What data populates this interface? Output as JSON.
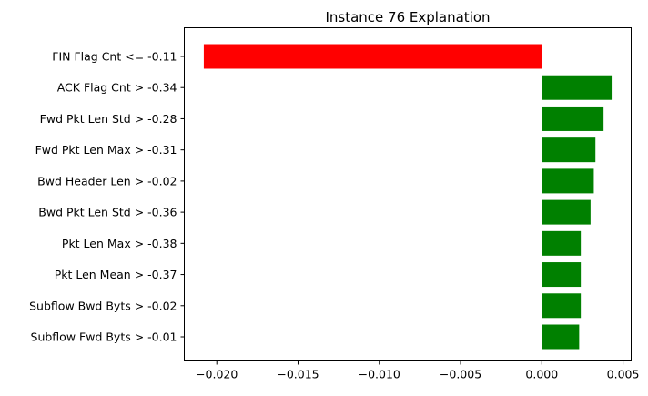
{
  "chart_data": {
    "type": "bar",
    "orientation": "horizontal",
    "title": "Instance 76 Explanation",
    "xlabel": "",
    "ylabel": "",
    "categories": [
      "FIN Flag Cnt <= -0.11",
      "ACK Flag Cnt > -0.34",
      "Fwd Pkt Len Std > -0.28",
      "Fwd Pkt Len Max > -0.31",
      "Bwd Header Len > -0.02",
      "Bwd Pkt Len Std > -0.36",
      "Pkt Len Max > -0.38",
      "Pkt Len Mean > -0.37",
      "Subflow Bwd Byts > -0.02",
      "Subflow Fwd Byts > -0.01"
    ],
    "values": [
      -0.0208,
      0.0043,
      0.0038,
      0.0033,
      0.0032,
      0.003,
      0.0024,
      0.0024,
      0.0024,
      0.0023
    ],
    "xlim": [
      -0.022,
      0.0055
    ],
    "xticks": [
      -0.02,
      -0.015,
      -0.01,
      -0.005,
      0.0,
      0.005
    ],
    "xtick_labels": [
      "−0.020",
      "−0.015",
      "−0.010",
      "−0.005",
      "0.000",
      "0.005"
    ],
    "colors": {
      "positive": "#008000",
      "negative": "#ff0000"
    },
    "grid": false
  }
}
